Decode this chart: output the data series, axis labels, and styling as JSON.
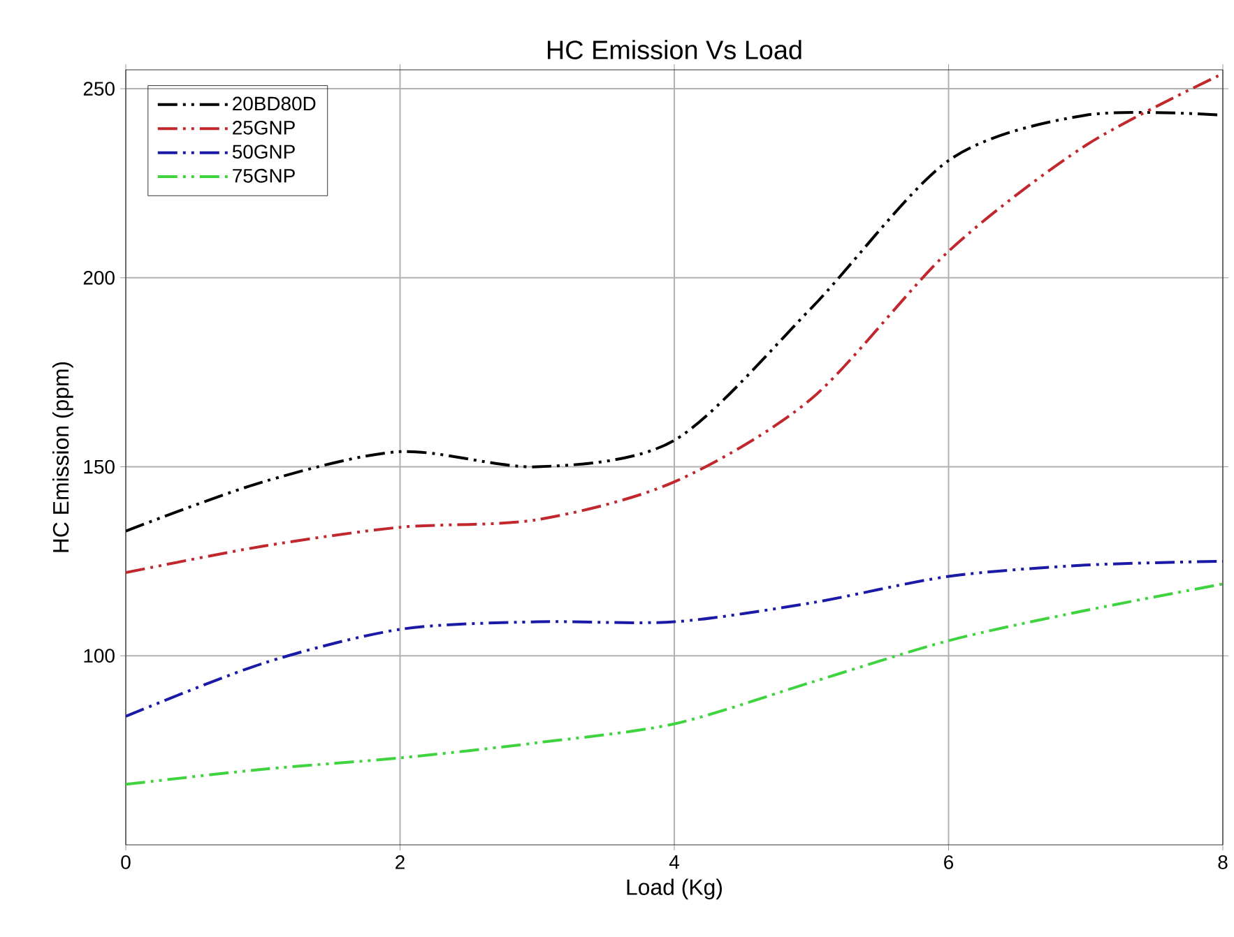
{
  "chart_data": {
    "type": "line",
    "title": "HC Emission Vs Load",
    "xlabel": "Load (Kg)",
    "ylabel": "HC Emission (ppm)",
    "x": [
      0,
      1,
      2,
      3,
      4,
      5,
      6,
      7,
      8
    ],
    "series": [
      {
        "name": "20BD80D",
        "color": "#000000",
        "values": [
          133,
          146,
          154,
          150,
          157,
          192,
          231,
          243,
          243
        ]
      },
      {
        "name": "25GNP",
        "color": "#c0282d",
        "values": [
          122,
          129,
          134,
          136,
          146,
          168,
          207,
          235,
          254
        ]
      },
      {
        "name": "50GNP",
        "color": "#1a1aa6",
        "values": [
          84,
          98,
          107,
          109,
          109,
          114,
          121,
          124,
          125
        ]
      },
      {
        "name": "75GNP",
        "color": "#3fd43f",
        "values": [
          66,
          70,
          73,
          77,
          82,
          93,
          104,
          112,
          119
        ]
      }
    ],
    "xlim": [
      0,
      8
    ],
    "xticks": [
      0,
      2,
      4,
      6,
      8
    ],
    "ylim": [
      50,
      255
    ],
    "yticks": [
      100,
      150,
      200,
      250
    ],
    "grid": true,
    "legend": "top left",
    "line_style": "dashed",
    "marker": "none"
  }
}
